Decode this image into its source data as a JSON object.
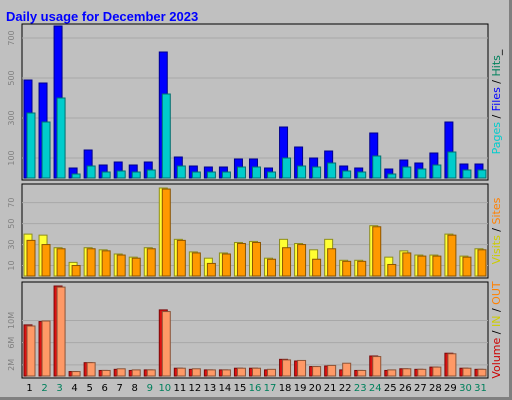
{
  "title": "Daily usage for December 2023",
  "chart_data": [
    {
      "type": "bar",
      "panel": "top",
      "ylim": [
        0,
        750
      ],
      "tick_labels": [
        "700",
        "500",
        "300",
        "100"
      ],
      "tick_values": [
        700,
        500,
        300,
        100
      ],
      "legend": [
        {
          "text": "Pages",
          "color": "#00cccc"
        },
        {
          "text": " / ",
          "color": "#000000"
        },
        {
          "text": "Files",
          "color": "#0000ff"
        },
        {
          "text": " / ",
          "color": "#000000"
        },
        {
          "text": "Hits",
          "color": "#00805c"
        },
        {
          "text": "_",
          "color": "#000000"
        }
      ],
      "series": [
        {
          "color": "#0000ff",
          "values": [
            490,
            475,
            760,
            50,
            140,
            65,
            80,
            65,
            80,
            630,
            105,
            60,
            55,
            55,
            95,
            95,
            50,
            255,
            155,
            100,
            135,
            60,
            50,
            225,
            45,
            90,
            75,
            125,
            280,
            70,
            70
          ]
        },
        {
          "color": "#00cccc",
          "values": [
            325,
            280,
            400,
            20,
            60,
            30,
            35,
            30,
            40,
            420,
            60,
            30,
            30,
            30,
            55,
            55,
            30,
            100,
            60,
            55,
            75,
            35,
            30,
            110,
            20,
            55,
            45,
            65,
            130,
            40,
            40
          ]
        }
      ]
    },
    {
      "type": "bar",
      "panel": "middle",
      "ylim": [
        0,
        84
      ],
      "tick_labels": [
        "70",
        "50",
        "30",
        "10"
      ],
      "tick_values": [
        70,
        50,
        30,
        10
      ],
      "legend": [
        {
          "text": "Visits",
          "color": "#cccc00"
        },
        {
          "text": " / ",
          "color": "#000000"
        },
        {
          "text": "Sites",
          "color": "#ff8000"
        }
      ],
      "series": [
        {
          "color": "#ffff33",
          "values": [
            40,
            39,
            27,
            13,
            27,
            25,
            21,
            18,
            27,
            84,
            35,
            23,
            17,
            22,
            32,
            33,
            17,
            35,
            31,
            25,
            35,
            15,
            15,
            48,
            18,
            24,
            20,
            20,
            40,
            19,
            26
          ]
        },
        {
          "color": "#ff9900",
          "values": [
            34,
            30,
            26,
            10,
            26,
            24,
            20,
            17,
            26,
            83,
            34,
            22,
            12,
            21,
            31,
            32,
            16,
            27,
            30,
            16,
            26,
            14,
            14,
            47,
            11,
            22,
            19,
            19,
            39,
            18,
            25
          ]
        }
      ]
    },
    {
      "type": "bar",
      "panel": "bottom",
      "ylim": [
        0,
        16.2
      ],
      "tick_labels": [
        "10M",
        "6M",
        "2M"
      ],
      "tick_values": [
        10,
        6,
        2
      ],
      "legend": [
        {
          "text": "Volume",
          "color": "#cc0000"
        },
        {
          "text": " / ",
          "color": "#000000"
        },
        {
          "text": "IN",
          "color": "#cccc00"
        },
        {
          "text": " / ",
          "color": "#000000"
        },
        {
          "text": "OUT",
          "color": "#ff8000"
        }
      ],
      "series": [
        {
          "color": "#dd1111",
          "values": [
            9.2,
            9.8,
            16.2,
            0.8,
            2.4,
            1.0,
            1.2,
            1.0,
            1.1,
            11.9,
            1.4,
            1.2,
            1.1,
            1.1,
            1.4,
            1.4,
            1.1,
            3.0,
            2.7,
            1.7,
            1.8,
            1.1,
            1.0,
            3.6,
            1.0,
            1.3,
            1.2,
            1.6,
            4.1,
            1.4,
            1.2
          ]
        },
        {
          "color": "#ff9966",
          "values": [
            9.0,
            9.9,
            16.0,
            0.8,
            2.4,
            1.0,
            1.3,
            1.1,
            1.1,
            11.6,
            1.4,
            1.3,
            1.1,
            1.1,
            1.4,
            1.4,
            1.2,
            2.9,
            2.8,
            1.7,
            1.9,
            2.3,
            1.0,
            3.5,
            1.1,
            1.3,
            1.2,
            1.6,
            4.0,
            1.4,
            1.2
          ]
        }
      ]
    }
  ],
  "days": [
    {
      "label": "1",
      "color": "#000000"
    },
    {
      "label": "2",
      "color": "#00805c"
    },
    {
      "label": "3",
      "color": "#00805c"
    },
    {
      "label": "4",
      "color": "#000000"
    },
    {
      "label": "5",
      "color": "#000000"
    },
    {
      "label": "6",
      "color": "#000000"
    },
    {
      "label": "7",
      "color": "#000000"
    },
    {
      "label": "8",
      "color": "#000000"
    },
    {
      "label": "9",
      "color": "#00805c"
    },
    {
      "label": "10",
      "color": "#00805c"
    },
    {
      "label": "11",
      "color": "#000000"
    },
    {
      "label": "12",
      "color": "#000000"
    },
    {
      "label": "13",
      "color": "#000000"
    },
    {
      "label": "14",
      "color": "#000000"
    },
    {
      "label": "15",
      "color": "#000000"
    },
    {
      "label": "16",
      "color": "#00805c"
    },
    {
      "label": "17",
      "color": "#00805c"
    },
    {
      "label": "18",
      "color": "#000000"
    },
    {
      "label": "19",
      "color": "#000000"
    },
    {
      "label": "20",
      "color": "#000000"
    },
    {
      "label": "21",
      "color": "#000000"
    },
    {
      "label": "22",
      "color": "#000000"
    },
    {
      "label": "23",
      "color": "#00805c"
    },
    {
      "label": "24",
      "color": "#00805c"
    },
    {
      "label": "25",
      "color": "#000000"
    },
    {
      "label": "26",
      "color": "#000000"
    },
    {
      "label": "27",
      "color": "#000000"
    },
    {
      "label": "28",
      "color": "#000000"
    },
    {
      "label": "29",
      "color": "#000000"
    },
    {
      "label": "30",
      "color": "#00805c"
    },
    {
      "label": "31",
      "color": "#00805c"
    }
  ]
}
